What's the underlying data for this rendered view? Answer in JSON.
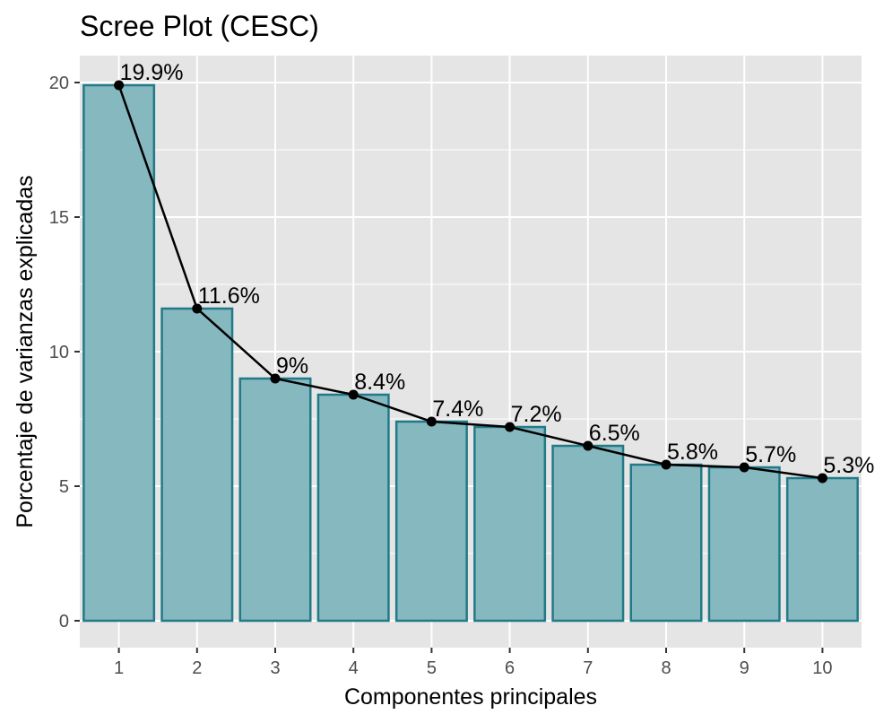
{
  "chart_data": {
    "type": "bar",
    "title": "Scree Plot (CESC)",
    "xlabel": "Componentes principales",
    "ylabel": "Porcentaje de varianzas explicadas",
    "categories": [
      "1",
      "2",
      "3",
      "4",
      "5",
      "6",
      "7",
      "8",
      "9",
      "10"
    ],
    "values": [
      19.9,
      11.6,
      9.0,
      8.4,
      7.4,
      7.2,
      6.5,
      5.8,
      5.7,
      5.3
    ],
    "data_labels": [
      "19.9%",
      "11.6%",
      "9%",
      "8.4%",
      "7.4%",
      "7.2%",
      "6.5%",
      "5.8%",
      "5.7%",
      "5.3%"
    ],
    "y_ticks": [
      0,
      5,
      10,
      15,
      20
    ],
    "ylim": [
      -1,
      21
    ],
    "grid": true,
    "overlay_line": true,
    "colors": {
      "panel_background": "#e5e5e5",
      "grid": "#ffffff",
      "bar_fill": "#86b8bf",
      "bar_outline": "#217a87",
      "line": "#000000"
    }
  }
}
